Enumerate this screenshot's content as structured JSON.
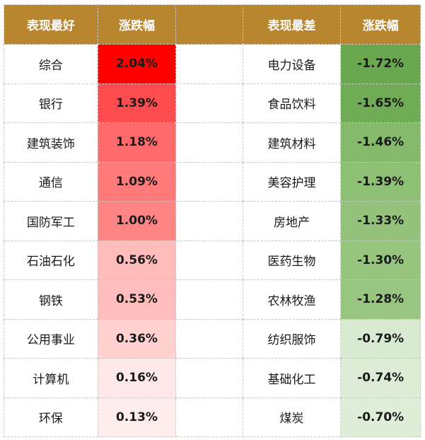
{
  "header": {
    "best_label": "表现最好",
    "change_label_left": "涨跌幅",
    "worst_label": "表现最差",
    "change_label_right": "涨跌幅"
  },
  "colors": {
    "header_bg": "#b8862f",
    "header_text": "#ffffff"
  },
  "best": [
    {
      "name": "综合",
      "change": "2.04%",
      "color": "#ff0000"
    },
    {
      "name": "银行",
      "change": "1.39%",
      "color": "#ff4d4f"
    },
    {
      "name": "建筑装饰",
      "change": "1.18%",
      "color": "#ff6b6b"
    },
    {
      "name": "通信",
      "change": "1.09%",
      "color": "#ff7a7a"
    },
    {
      "name": "国防军工",
      "change": "1.00%",
      "color": "#ff8585"
    },
    {
      "name": "石油石化",
      "change": "0.56%",
      "color": "#ffbaba"
    },
    {
      "name": "钢铁",
      "change": "0.53%",
      "color": "#ffbdbd"
    },
    {
      "name": "公用事业",
      "change": "0.36%",
      "color": "#ffd1d1"
    },
    {
      "name": "计算机",
      "change": "0.16%",
      "color": "#ffe8e8"
    },
    {
      "name": "环保",
      "change": "0.13%",
      "color": "#ffecec"
    }
  ],
  "worst": [
    {
      "name": "电力设备",
      "change": "-1.72%",
      "color": "#6aa84f"
    },
    {
      "name": "食品饮料",
      "change": "-1.65%",
      "color": "#70ac55"
    },
    {
      "name": "建筑材料",
      "change": "-1.46%",
      "color": "#85ba6c"
    },
    {
      "name": "美容护理",
      "change": "-1.39%",
      "color": "#8dbf75"
    },
    {
      "name": "房地产",
      "change": "-1.33%",
      "color": "#93c37b"
    },
    {
      "name": "医药生物",
      "change": "-1.30%",
      "color": "#96c57e"
    },
    {
      "name": "农林牧渔",
      "change": "-1.28%",
      "color": "#98c680"
    },
    {
      "name": "纺织服饰",
      "change": "-0.79%",
      "color": "#d9ead3"
    },
    {
      "name": "基础化工",
      "change": "-0.74%",
      "color": "#dcecd6"
    },
    {
      "name": "煤炭",
      "change": "-0.70%",
      "color": "#dfeed9"
    }
  ]
}
